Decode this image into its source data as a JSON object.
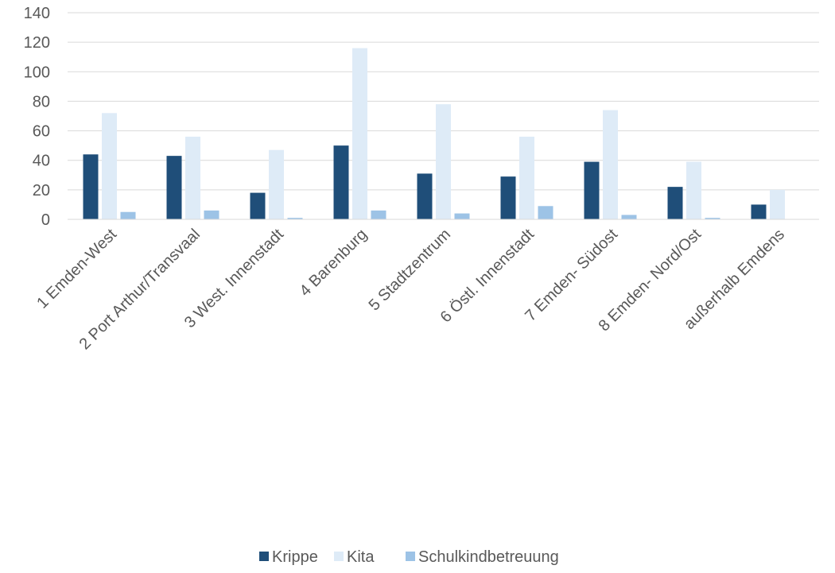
{
  "chart_data": {
    "type": "bar",
    "title": "",
    "xlabel": "",
    "ylabel": "",
    "ylim": [
      0,
      140
    ],
    "yticks": [
      0,
      20,
      40,
      60,
      80,
      100,
      120,
      140
    ],
    "grid": true,
    "legend_position": "bottom",
    "categories": [
      "1 Emden-West",
      "2 Port Arthur/Transvaal",
      "3 West. Innenstadt",
      "4 Barenburg",
      "5 Stadtzentrum",
      "6 Östl. Innenstadt",
      "7 Emden- Südost",
      "8 Emden- Nord/Ost",
      "außerhalb Emdens"
    ],
    "series": [
      {
        "name": "Krippe",
        "color": "#1f4e79",
        "values": [
          44,
          43,
          18,
          50,
          31,
          29,
          39,
          22,
          10
        ]
      },
      {
        "name": "Kita",
        "color": "#deebf7",
        "values": [
          72,
          56,
          47,
          116,
          78,
          56,
          74,
          39,
          20
        ]
      },
      {
        "name": "Schulkindbetreuung",
        "color": "#9dc3e6",
        "values": [
          5,
          6,
          1,
          6,
          4,
          9,
          3,
          1,
          0
        ]
      }
    ]
  }
}
